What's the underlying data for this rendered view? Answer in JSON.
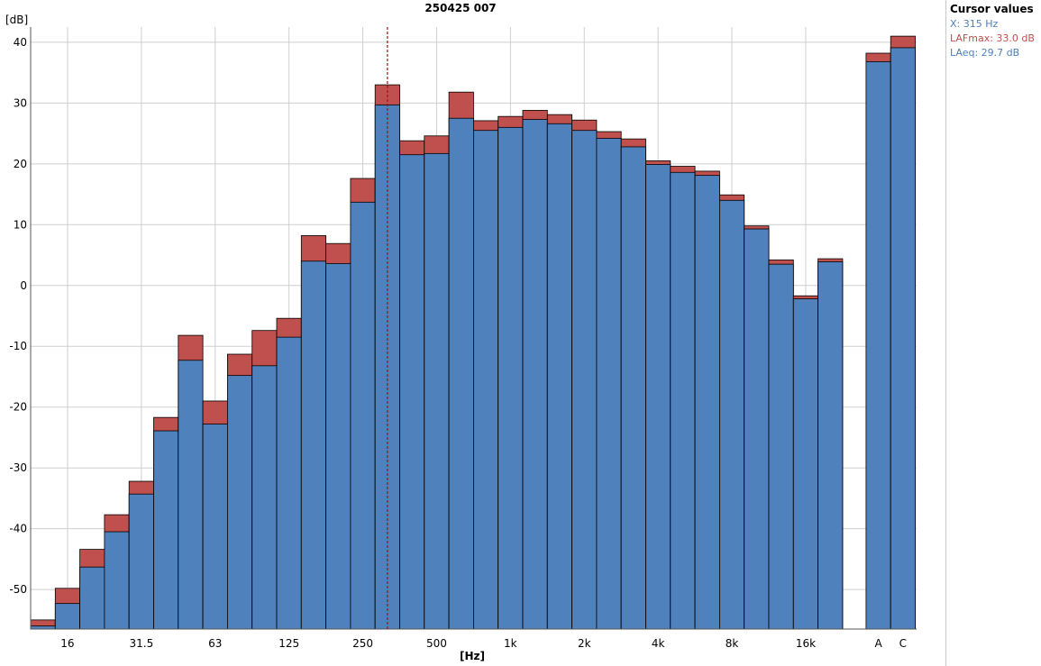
{
  "chart_data": {
    "type": "bar",
    "title": "250425 007",
    "xlabel": "[Hz]",
    "ylabel": "[dB]",
    "ylim": [
      -56.5,
      42.5
    ],
    "yticks": [
      40,
      30,
      20,
      10,
      0,
      -10,
      -20,
      -30,
      -40,
      -50
    ],
    "grid": true,
    "bands": [
      "12.5",
      "16",
      "20",
      "25",
      "31.5",
      "40",
      "50",
      "63",
      "80",
      "100",
      "125",
      "160",
      "200",
      "250",
      "315",
      "400",
      "500",
      "630",
      "800",
      "1k",
      "1.25k",
      "1.6k",
      "2k",
      "2.5k",
      "3.15k",
      "4k",
      "5k",
      "6.3k",
      "8k",
      "10k",
      "12.5k",
      "16k",
      "20k",
      "A",
      "C"
    ],
    "x_tick_labels": [
      "16",
      "31.5",
      "63",
      "125",
      "250",
      "500",
      "1k",
      "2k",
      "4k",
      "8k",
      "16k",
      "A",
      "C"
    ],
    "series": [
      {
        "name": "LAFmax",
        "color": "#c0504d",
        "values": [
          -55.0,
          -49.8,
          -43.4,
          -37.7,
          -32.2,
          -21.7,
          -8.2,
          -19.0,
          -11.3,
          -7.4,
          -5.4,
          8.2,
          6.9,
          17.6,
          33.0,
          23.8,
          24.6,
          31.8,
          27.1,
          27.8,
          28.8,
          28.1,
          27.2,
          25.3,
          24.1,
          20.5,
          19.6,
          18.8,
          14.9,
          9.8,
          4.2,
          -1.7,
          4.4,
          38.2,
          41.0
        ]
      },
      {
        "name": "LAeq",
        "color": "#4f81bd",
        "values": [
          -56.0,
          -52.3,
          -46.3,
          -40.5,
          -34.3,
          -23.9,
          -12.3,
          -22.8,
          -14.8,
          -13.2,
          -8.5,
          4.0,
          3.6,
          13.7,
          29.7,
          21.5,
          21.7,
          27.5,
          25.5,
          26.0,
          27.3,
          26.6,
          25.5,
          24.2,
          22.8,
          19.9,
          18.6,
          18.1,
          14.0,
          9.3,
          3.5,
          -2.2,
          3.9,
          36.8,
          39.1
        ]
      }
    ],
    "cursor": {
      "band": "315"
    }
  },
  "cursor_panel": {
    "title": "Cursor values",
    "x_line": "X: 315 Hz",
    "max_line": "LAFmax: 33.0 dB",
    "eq_line": "LAeq: 29.7 dB",
    "x_color": "#4f81bd",
    "max_color": "#c0504d",
    "eq_color": "#4f81bd"
  }
}
